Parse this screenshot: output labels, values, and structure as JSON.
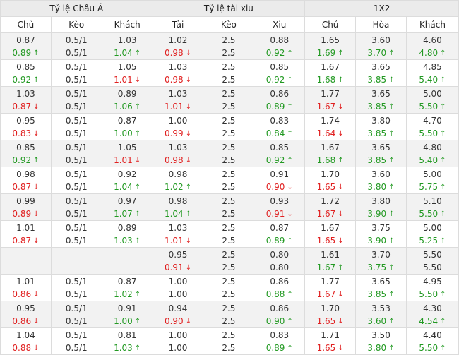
{
  "groups": [
    "Tỷ lệ Châu Á",
    "Tỷ lệ tài xiu",
    "1X2"
  ],
  "columns": [
    "Chủ",
    "Kèo",
    "Khách",
    "Tài",
    "Kèo",
    "Xiu",
    "Chủ",
    "Hòa",
    "Khách"
  ],
  "colors": {
    "up": "#229922",
    "down": "#e02020",
    "header_bg": "#ebebeb",
    "row_alt_bg": "#f2f2f2"
  },
  "icons": {
    "up": "arrow-up-icon",
    "down": "arrow-down-icon"
  },
  "rows": [
    {
      "cells": [
        [
          "0.87",
          "0.89",
          "up"
        ],
        [
          "0.5/1",
          "0.5/1",
          ""
        ],
        [
          "1.03",
          "1.04",
          "up"
        ],
        [
          "1.02",
          "0.98",
          "down"
        ],
        [
          "2.5",
          "2.5",
          ""
        ],
        [
          "0.88",
          "0.92",
          "up"
        ],
        [
          "1.65",
          "1.69",
          "up"
        ],
        [
          "3.60",
          "3.70",
          "up"
        ],
        [
          "4.60",
          "4.80",
          "up"
        ]
      ]
    },
    {
      "cells": [
        [
          "0.85",
          "0.92",
          "up"
        ],
        [
          "0.5/1",
          "0.5/1",
          ""
        ],
        [
          "1.05",
          "1.01",
          "down"
        ],
        [
          "1.03",
          "0.98",
          "down"
        ],
        [
          "2.5",
          "2.5",
          ""
        ],
        [
          "0.85",
          "0.92",
          "up"
        ],
        [
          "1.67",
          "1.68",
          "up"
        ],
        [
          "3.65",
          "3.85",
          "up"
        ],
        [
          "4.85",
          "5.40",
          "up"
        ]
      ]
    },
    {
      "cells": [
        [
          "1.03",
          "0.87",
          "down"
        ],
        [
          "0.5/1",
          "0.5/1",
          ""
        ],
        [
          "0.89",
          "1.06",
          "up"
        ],
        [
          "1.03",
          "1.01",
          "down"
        ],
        [
          "2.5",
          "2.5",
          ""
        ],
        [
          "0.86",
          "0.89",
          "up"
        ],
        [
          "1.77",
          "1.67",
          "down"
        ],
        [
          "3.65",
          "3.85",
          "up"
        ],
        [
          "5.00",
          "5.50",
          "up"
        ]
      ]
    },
    {
      "cells": [
        [
          "0.95",
          "0.83",
          "down"
        ],
        [
          "0.5/1",
          "0.5/1",
          ""
        ],
        [
          "0.87",
          "1.00",
          "up"
        ],
        [
          "1.00",
          "0.99",
          "down"
        ],
        [
          "2.5",
          "2.5",
          ""
        ],
        [
          "0.83",
          "0.84",
          "up"
        ],
        [
          "1.74",
          "1.64",
          "down"
        ],
        [
          "3.80",
          "3.85",
          "up"
        ],
        [
          "4.70",
          "5.50",
          "up"
        ]
      ]
    },
    {
      "cells": [
        [
          "0.85",
          "0.92",
          "up"
        ],
        [
          "0.5/1",
          "0.5/1",
          ""
        ],
        [
          "1.05",
          "1.01",
          "down"
        ],
        [
          "1.03",
          "0.98",
          "down"
        ],
        [
          "2.5",
          "2.5",
          ""
        ],
        [
          "0.85",
          "0.92",
          "up"
        ],
        [
          "1.67",
          "1.68",
          "up"
        ],
        [
          "3.65",
          "3.85",
          "up"
        ],
        [
          "4.80",
          "5.40",
          "up"
        ]
      ]
    },
    {
      "cells": [
        [
          "0.98",
          "0.87",
          "down"
        ],
        [
          "0.5/1",
          "0.5/1",
          ""
        ],
        [
          "0.92",
          "1.04",
          "up"
        ],
        [
          "0.98",
          "1.02",
          "up"
        ],
        [
          "2.5",
          "2.5",
          ""
        ],
        [
          "0.91",
          "0.90",
          "down"
        ],
        [
          "1.70",
          "1.65",
          "down"
        ],
        [
          "3.60",
          "3.80",
          "up"
        ],
        [
          "5.00",
          "5.75",
          "up"
        ]
      ]
    },
    {
      "cells": [
        [
          "0.99",
          "0.89",
          "down"
        ],
        [
          "0.5/1",
          "0.5/1",
          ""
        ],
        [
          "0.97",
          "1.07",
          "up"
        ],
        [
          "0.98",
          "1.04",
          "up"
        ],
        [
          "2.5",
          "2.5",
          ""
        ],
        [
          "0.93",
          "0.91",
          "down"
        ],
        [
          "1.72",
          "1.67",
          "down"
        ],
        [
          "3.80",
          "3.90",
          "up"
        ],
        [
          "5.10",
          "5.50",
          "up"
        ]
      ]
    },
    {
      "cells": [
        [
          "1.01",
          "0.87",
          "down"
        ],
        [
          "0.5/1",
          "0.5/1",
          ""
        ],
        [
          "0.89",
          "1.03",
          "up"
        ],
        [
          "1.03",
          "1.01",
          "down"
        ],
        [
          "2.5",
          "2.5",
          ""
        ],
        [
          "0.87",
          "0.89",
          "up"
        ],
        [
          "1.67",
          "1.65",
          "down"
        ],
        [
          "3.75",
          "3.90",
          "up"
        ],
        [
          "5.00",
          "5.25",
          "up"
        ]
      ]
    },
    {
      "cells": [
        [
          "",
          "",
          ""
        ],
        [
          "",
          "",
          ""
        ],
        [
          "",
          "",
          ""
        ],
        [
          "0.95",
          "0.91",
          "down"
        ],
        [
          "2.5",
          "2.5",
          ""
        ],
        [
          "0.80",
          "0.80",
          ""
        ],
        [
          "1.61",
          "1.67",
          "up"
        ],
        [
          "3.70",
          "3.75",
          "up"
        ],
        [
          "5.50",
          "5.50",
          ""
        ]
      ]
    },
    {
      "cells": [
        [
          "1.01",
          "0.86",
          "down"
        ],
        [
          "0.5/1",
          "0.5/1",
          ""
        ],
        [
          "0.87",
          "1.02",
          "up"
        ],
        [
          "1.00",
          "1.00",
          ""
        ],
        [
          "2.5",
          "2.5",
          ""
        ],
        [
          "0.86",
          "0.88",
          "up"
        ],
        [
          "1.77",
          "1.67",
          "down"
        ],
        [
          "3.65",
          "3.85",
          "up"
        ],
        [
          "4.95",
          "5.50",
          "up"
        ]
      ]
    },
    {
      "cells": [
        [
          "0.95",
          "0.86",
          "down"
        ],
        [
          "0.5/1",
          "0.5/1",
          ""
        ],
        [
          "0.91",
          "1.00",
          "up"
        ],
        [
          "0.94",
          "0.90",
          "down"
        ],
        [
          "2.5",
          "2.5",
          ""
        ],
        [
          "0.86",
          "0.90",
          "up"
        ],
        [
          "1.70",
          "1.65",
          "down"
        ],
        [
          "3.53",
          "3.60",
          "up"
        ],
        [
          "4.30",
          "4.54",
          "up"
        ]
      ]
    },
    {
      "cells": [
        [
          "1.04",
          "0.88",
          "down"
        ],
        [
          "0.5/1",
          "0.5/1",
          ""
        ],
        [
          "0.81",
          "1.03",
          "up"
        ],
        [
          "1.00",
          "1.00",
          ""
        ],
        [
          "2.5",
          "2.5",
          ""
        ],
        [
          "0.83",
          "0.89",
          "up"
        ],
        [
          "1.71",
          "1.65",
          "down"
        ],
        [
          "3.50",
          "3.80",
          "up"
        ],
        [
          "4.40",
          "5.50",
          "up"
        ]
      ]
    }
  ]
}
